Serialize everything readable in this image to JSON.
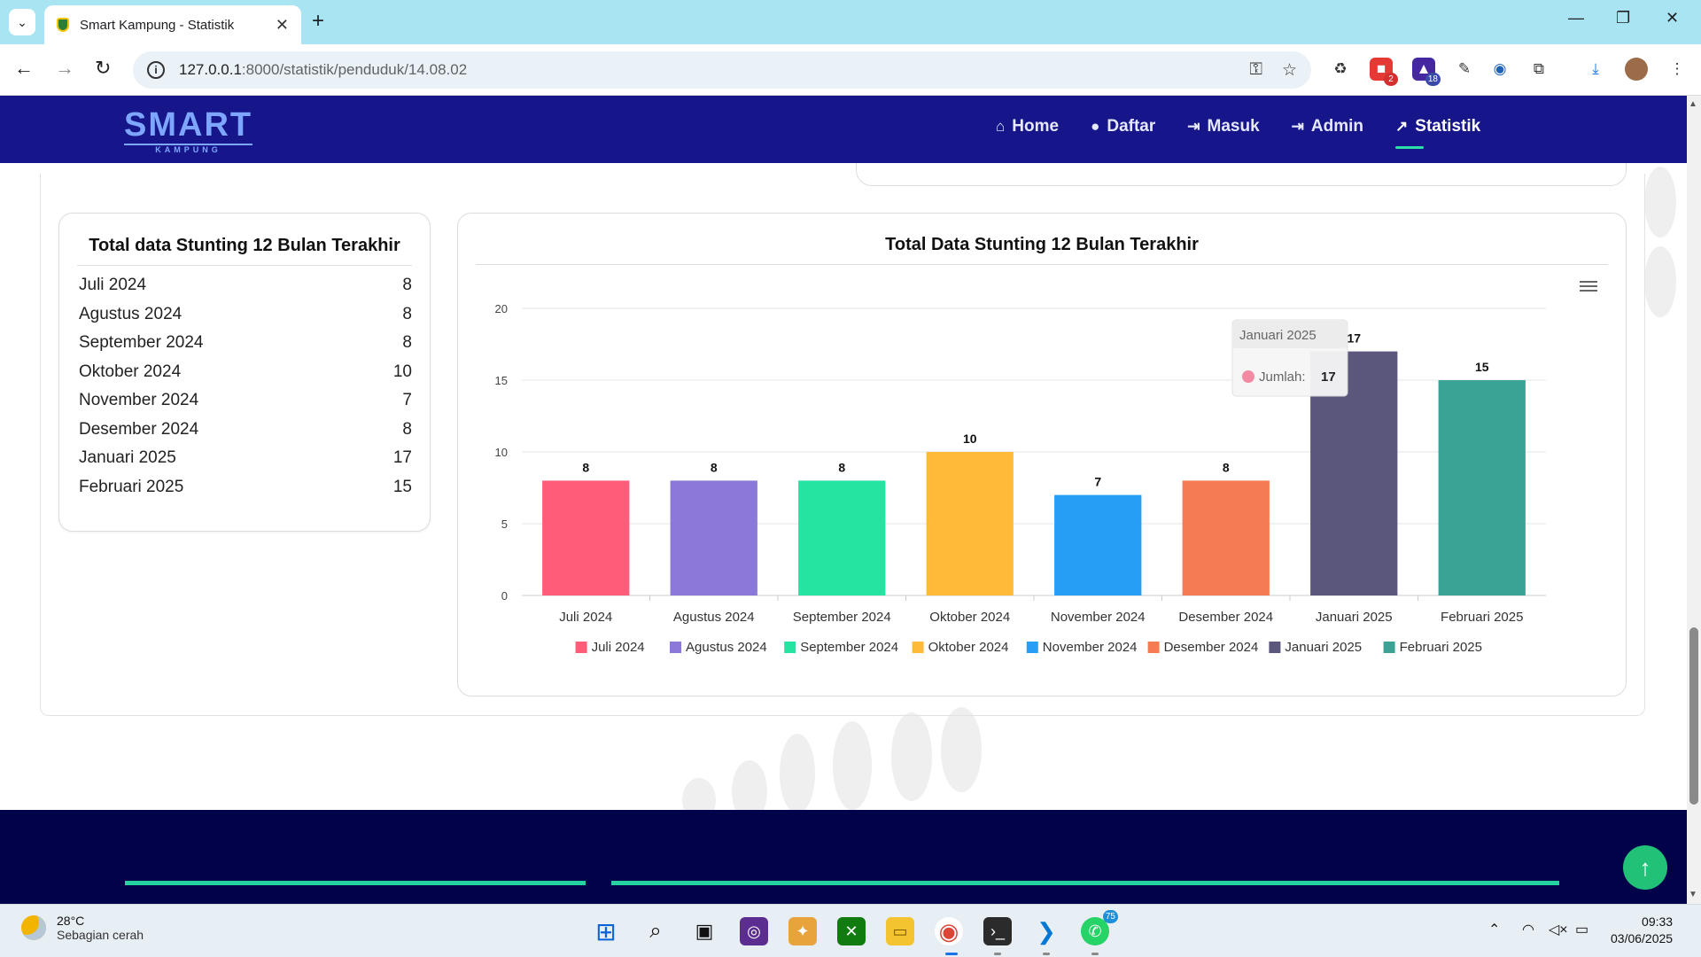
{
  "browser": {
    "tab_title": "Smart Kampung - Statistik",
    "url_host": "127.0.0.1",
    "url_path": ":8000/statistik/penduduk/14.08.02",
    "ext_badges": [
      "2",
      "18"
    ]
  },
  "site": {
    "logo_text": "SMART",
    "logo_sub": "KAMPUNG",
    "nav": [
      {
        "label": "Home",
        "icon": "home-icon"
      },
      {
        "label": "Daftar",
        "icon": "user-icon"
      },
      {
        "label": "Masuk",
        "icon": "login-icon"
      },
      {
        "label": "Admin",
        "icon": "login-icon"
      },
      {
        "label": "Statistik",
        "icon": "chart-icon"
      }
    ]
  },
  "list_card": {
    "title": "Total data Stunting 12 Bulan Terakhir",
    "rows": [
      {
        "month": "Juli 2024",
        "value": "8"
      },
      {
        "month": "Agustus 2024",
        "value": "8"
      },
      {
        "month": "September 2024",
        "value": "8"
      },
      {
        "month": "Oktober 2024",
        "value": "10"
      },
      {
        "month": "November 2024",
        "value": "7"
      },
      {
        "month": "Desember 2024",
        "value": "8"
      },
      {
        "month": "Januari 2025",
        "value": "17"
      },
      {
        "month": "Februari 2025",
        "value": "15"
      }
    ]
  },
  "chart_card": {
    "title": "Total Data Stunting 12 Bulan Terakhir",
    "tooltip": {
      "header": "Januari 2025",
      "series": "Jumlah:",
      "value": "17"
    }
  },
  "chart_data": {
    "type": "bar",
    "title": "Total Data Stunting 12 Bulan Terakhir",
    "categories": [
      "Juli 2024",
      "Agustus 2024",
      "September 2024",
      "Oktober 2024",
      "November 2024",
      "Desember 2024",
      "Januari 2025",
      "Februari 2025"
    ],
    "values": [
      8,
      8,
      8,
      10,
      7,
      8,
      17,
      15
    ],
    "colors": [
      "#ff5c7a",
      "#8b78d8",
      "#25e3a0",
      "#ffbb38",
      "#259ff5",
      "#f57b52",
      "#5b567c",
      "#3ba396"
    ],
    "ylim": [
      0,
      20
    ],
    "yticks": [
      0,
      5,
      10,
      15,
      20
    ],
    "grid": true,
    "legend": "bottom"
  },
  "taskbar": {
    "temp": "28°C",
    "weather": "Sebagian cerah",
    "time": "09:33",
    "date": "03/06/2025",
    "whatsapp_badge": "75"
  }
}
